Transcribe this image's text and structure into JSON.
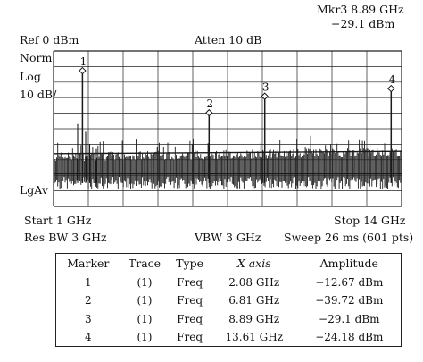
{
  "header": {
    "marker_readout": "Mkr3 8.89 GHz",
    "marker_amplitude": "−29.1 dBm",
    "ref_level": "Ref 0 dBm",
    "attenuation": "Atten 10 dB",
    "scale_mode": "Norm",
    "scale_type": "Log",
    "scale_div": "10 dB/",
    "detector": "LgAv"
  },
  "footer": {
    "start": "Start 1 GHz",
    "stop": "Stop 14 GHz",
    "res_bw": "Res BW 3 GHz",
    "vbw": "VBW 3 GHz",
    "sweep": "Sweep 26 ms (601 pts)"
  },
  "marker_table": {
    "headers": [
      "Marker",
      "Trace",
      "Type",
      "X axis",
      "Amplitude"
    ],
    "rows": [
      [
        "1",
        "(1)",
        "Freq",
        "2.08 GHz",
        "−12.67 dBm"
      ],
      [
        "2",
        "(1)",
        "Freq",
        "6.81 GHz",
        "−39.72 dBm"
      ],
      [
        "3",
        "(1)",
        "Freq",
        "8.89 GHz",
        "−29.1 dBm"
      ],
      [
        "4",
        "(1)",
        "Freq",
        "13.61 GHz",
        "−24.18 dBm"
      ]
    ]
  },
  "chart_data": {
    "type": "line",
    "x_start_ghz": 1,
    "x_stop_ghz": 14,
    "y_top_dbm": 0,
    "y_bottom_dbm": -100,
    "grid": true,
    "grid_divisions_x": 10,
    "grid_divisions_y": 10,
    "noise_floor_dbm": [
      -67,
      -85
    ],
    "markers": [
      {
        "label": "1",
        "x": 2.08,
        "y": -12.67
      },
      {
        "label": "2",
        "x": 6.81,
        "y": -39.72
      },
      {
        "label": "3",
        "x": 8.89,
        "y": -29.1
      },
      {
        "label": "4",
        "x": 13.61,
        "y": -24.18
      }
    ],
    "colors": {
      "trace": "#1a1a1a",
      "grid": "#222222",
      "background": "#ffffff"
    }
  }
}
